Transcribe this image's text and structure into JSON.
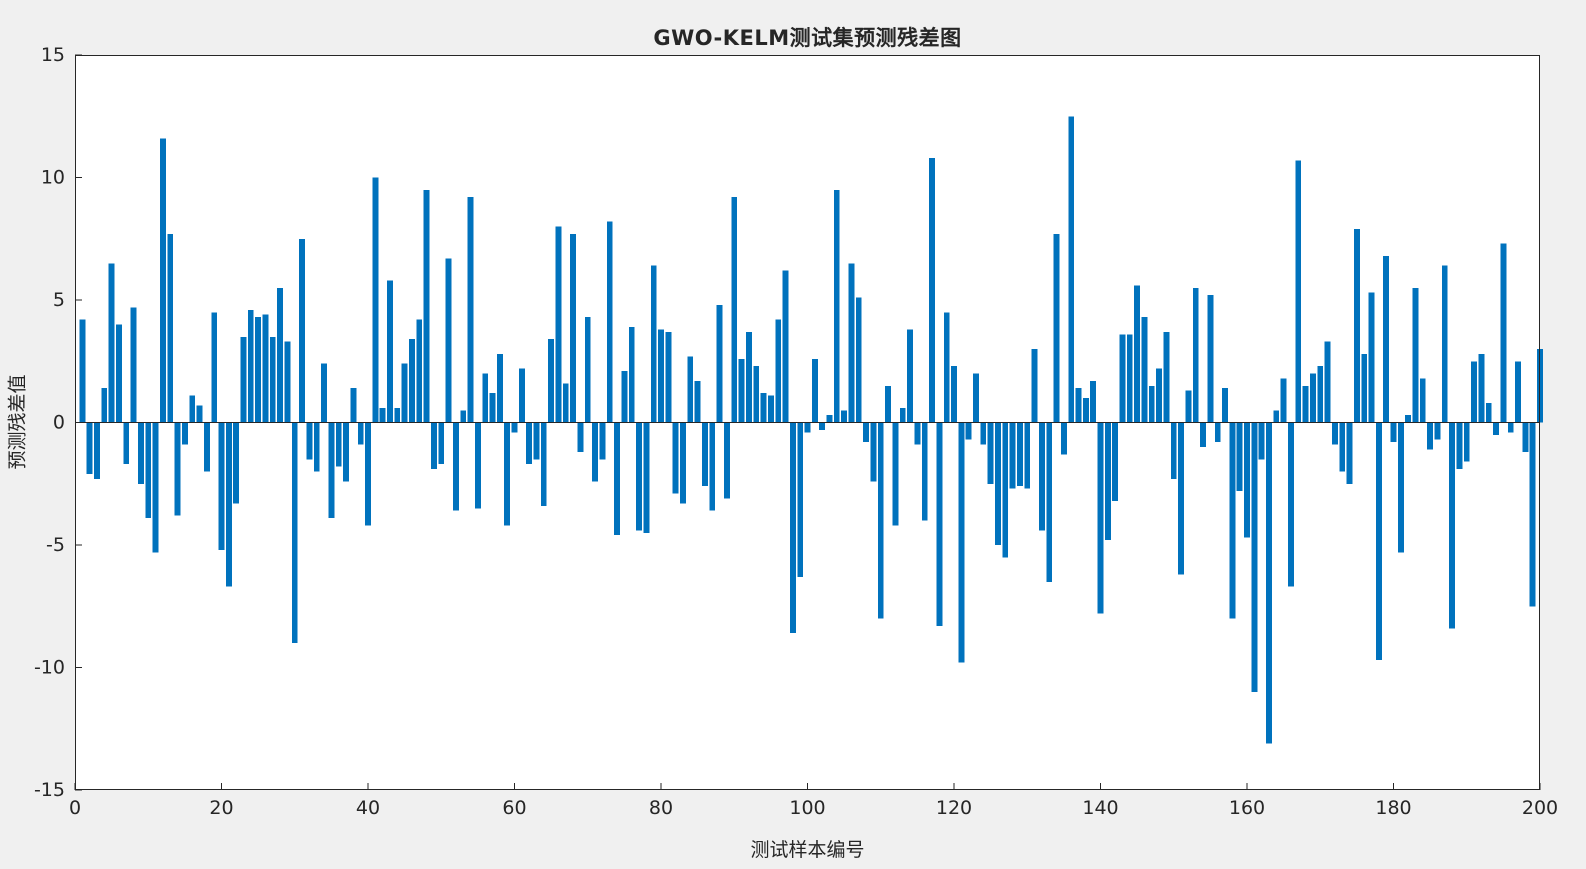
{
  "chart_data": {
    "type": "bar",
    "title": "GWO-KELM测试集预测残差图",
    "xlabel": "测试样本编号",
    "ylabel": "预测残差值",
    "xlim": [
      0,
      200
    ],
    "ylim": [
      -15,
      15
    ],
    "x_ticks": [
      0,
      20,
      40,
      60,
      80,
      100,
      120,
      140,
      160,
      180,
      200
    ],
    "y_ticks": [
      -15,
      -10,
      -5,
      0,
      5,
      10,
      15
    ],
    "grid": false,
    "legend": "none",
    "bar_color": "#0072BD",
    "figure_background": "#F0F0F0",
    "plot_background": "#FFFFFF",
    "axis_color": "#262626",
    "categories_note": "x = test sample index 1..200",
    "values": [
      4.2,
      -2.1,
      -2.3,
      1.4,
      6.5,
      4.0,
      -1.7,
      4.7,
      -2.5,
      -3.9,
      -5.3,
      11.6,
      7.7,
      -3.8,
      -0.9,
      1.1,
      0.7,
      -2.0,
      4.5,
      -5.2,
      -6.7,
      -3.3,
      3.5,
      4.6,
      4.3,
      4.4,
      3.5,
      5.5,
      3.3,
      -9.0,
      7.5,
      -1.5,
      -2.0,
      2.4,
      -3.9,
      -1.8,
      -2.4,
      1.4,
      -0.9,
      -4.2,
      10.0,
      0.6,
      5.8,
      0.6,
      2.4,
      3.4,
      4.2,
      9.5,
      -1.9,
      -1.7,
      6.7,
      -3.6,
      0.5,
      9.2,
      -3.5,
      2.0,
      1.2,
      2.8,
      -4.2,
      -0.4,
      2.2,
      -1.7,
      -1.5,
      -3.4,
      3.4,
      8.0,
      1.6,
      7.7,
      -1.2,
      4.3,
      -2.4,
      -1.5,
      8.2,
      -4.6,
      2.1,
      3.9,
      -4.4,
      -4.5,
      6.4,
      3.8,
      3.7,
      -2.9,
      -3.3,
      2.7,
      1.7,
      -2.6,
      -3.6,
      4.8,
      -3.1,
      9.2,
      2.6,
      3.7,
      2.3,
      1.2,
      1.1,
      4.2,
      6.2,
      -8.6,
      -6.3,
      -0.4,
      2.6,
      -0.3,
      0.3,
      9.5,
      0.5,
      6.5,
      5.1,
      -0.8,
      -2.4,
      -8.0,
      1.5,
      -4.2,
      0.6,
      3.8,
      -0.9,
      -4.0,
      10.8,
      -8.3,
      4.5,
      2.3,
      -9.8,
      -0.7,
      2.0,
      -0.9,
      -2.5,
      -5.0,
      -5.5,
      -2.7,
      -2.6,
      -2.7,
      3.0,
      -4.4,
      -6.5,
      7.7,
      -1.3,
      12.5,
      1.4,
      1.0,
      1.7,
      -7.8,
      -4.8,
      -3.2,
      3.6,
      3.6,
      5.6,
      4.3,
      1.5,
      2.2,
      3.7,
      -2.3,
      -6.2,
      1.3,
      5.5,
      -1.0,
      5.2,
      -0.8,
      1.4,
      -8.0,
      -2.8,
      -4.7,
      -11.0,
      -1.5,
      -13.1,
      0.5,
      1.8,
      -6.7,
      10.7,
      1.5,
      2.0,
      2.3,
      3.3,
      -0.9,
      -2.0,
      -2.5,
      7.9,
      2.8,
      5.3,
      -9.7,
      6.8,
      -0.8,
      -5.3,
      0.3,
      5.5,
      1.8,
      -1.1,
      -0.7,
      6.4,
      -8.4,
      -1.9,
      -1.6,
      2.5,
      2.8,
      0.8,
      -0.5,
      7.3,
      -0.4,
      2.5,
      -1.2,
      -7.5,
      3.0
    ]
  }
}
